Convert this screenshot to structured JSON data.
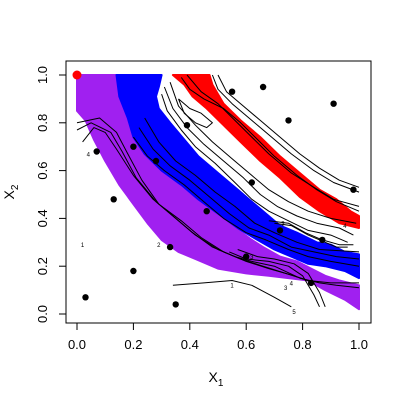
{
  "chart_data": {
    "type": "scatter",
    "xlabel": "X",
    "xlabel_sub": "1",
    "ylabel": "X",
    "ylabel_sub": "2",
    "xlim": [
      0,
      1
    ],
    "ylim": [
      0,
      1
    ],
    "x_ticks": [
      "0.0",
      "0.2",
      "0.4",
      "0.6",
      "0.8",
      "1.0"
    ],
    "y_ticks": [
      "0.0",
      "0.2",
      "0.4",
      "0.6",
      "0.8",
      "1.0"
    ],
    "grid": false,
    "legend": "none",
    "colors": {
      "purple": "#a020f0",
      "blue": "#0000ff",
      "red": "#ff0000",
      "points": "#000000",
      "start_point": "#ff0000",
      "contours": "#000000"
    },
    "bands": [
      {
        "color_key": "purple",
        "outer": [
          [
            0.0,
            1.0
          ],
          [
            0.14,
            1.0
          ],
          [
            0.15,
            0.92
          ],
          [
            0.18,
            0.85
          ],
          [
            0.2,
            0.75
          ],
          [
            0.25,
            0.66
          ],
          [
            0.32,
            0.58
          ],
          [
            0.4,
            0.5
          ],
          [
            0.48,
            0.43
          ],
          [
            0.55,
            0.37
          ],
          [
            0.62,
            0.31
          ],
          [
            0.66,
            0.28
          ],
          [
            0.72,
            0.24
          ],
          [
            0.78,
            0.22
          ],
          [
            0.83,
            0.19
          ],
          [
            0.88,
            0.16
          ],
          [
            0.93,
            0.14
          ],
          [
            1.0,
            0.12
          ]
        ],
        "inner": [
          [
            1.0,
            0.02
          ],
          [
            0.95,
            0.06
          ],
          [
            0.88,
            0.1
          ],
          [
            0.82,
            0.14
          ],
          [
            0.75,
            0.15
          ],
          [
            0.68,
            0.16
          ],
          [
            0.6,
            0.17
          ],
          [
            0.5,
            0.19
          ],
          [
            0.42,
            0.23
          ],
          [
            0.36,
            0.26
          ],
          [
            0.3,
            0.31
          ],
          [
            0.25,
            0.38
          ],
          [
            0.2,
            0.46
          ],
          [
            0.15,
            0.54
          ],
          [
            0.1,
            0.64
          ],
          [
            0.06,
            0.73
          ],
          [
            0.03,
            0.81
          ],
          [
            0.0,
            0.85
          ]
        ]
      },
      {
        "color_key": "blue",
        "outer": [
          [
            0.14,
            1.0
          ],
          [
            0.3,
            1.0
          ],
          [
            0.29,
            0.95
          ],
          [
            0.28,
            0.91
          ],
          [
            0.29,
            0.86
          ],
          [
            0.33,
            0.8
          ],
          [
            0.38,
            0.73
          ],
          [
            0.43,
            0.66
          ],
          [
            0.5,
            0.59
          ],
          [
            0.57,
            0.52
          ],
          [
            0.62,
            0.47
          ],
          [
            0.67,
            0.42
          ],
          [
            0.72,
            0.37
          ],
          [
            0.78,
            0.34
          ],
          [
            0.85,
            0.3
          ],
          [
            0.9,
            0.29
          ],
          [
            0.95,
            0.26
          ],
          [
            1.0,
            0.25
          ]
        ],
        "inner": [
          [
            1.0,
            0.15
          ],
          [
            0.95,
            0.18
          ],
          [
            0.88,
            0.2
          ],
          [
            0.82,
            0.21
          ],
          [
            0.76,
            0.24
          ],
          [
            0.7,
            0.27
          ],
          [
            0.64,
            0.31
          ],
          [
            0.57,
            0.36
          ],
          [
            0.5,
            0.42
          ],
          [
            0.43,
            0.48
          ],
          [
            0.37,
            0.54
          ],
          [
            0.3,
            0.6
          ],
          [
            0.24,
            0.67
          ],
          [
            0.2,
            0.74
          ],
          [
            0.18,
            0.82
          ],
          [
            0.15,
            0.91
          ]
        ]
      },
      {
        "color_key": "red",
        "outer": [
          [
            0.34,
            1.0
          ],
          [
            0.47,
            1.0
          ],
          [
            0.48,
            0.96
          ],
          [
            0.52,
            0.88
          ],
          [
            0.58,
            0.81
          ],
          [
            0.65,
            0.74
          ],
          [
            0.72,
            0.66
          ],
          [
            0.8,
            0.58
          ],
          [
            0.86,
            0.52
          ],
          [
            0.92,
            0.48
          ],
          [
            0.97,
            0.43
          ],
          [
            1.0,
            0.41
          ]
        ],
        "inner": [
          [
            1.0,
            0.36
          ],
          [
            0.93,
            0.38
          ],
          [
            0.86,
            0.43
          ],
          [
            0.79,
            0.49
          ],
          [
            0.72,
            0.57
          ],
          [
            0.65,
            0.64
          ],
          [
            0.58,
            0.72
          ],
          [
            0.52,
            0.79
          ],
          [
            0.46,
            0.86
          ],
          [
            0.41,
            0.91
          ],
          [
            0.38,
            0.96
          ]
        ]
      }
    ],
    "contours": [
      [
        [
          0.02,
          0.72
        ],
        [
          0.06,
          0.78
        ],
        [
          0.1,
          0.76
        ],
        [
          0.14,
          0.69
        ],
        [
          0.2,
          0.58
        ],
        [
          0.27,
          0.48
        ],
        [
          0.34,
          0.41
        ],
        [
          0.41,
          0.34
        ],
        [
          0.48,
          0.28
        ],
        [
          0.56,
          0.24
        ],
        [
          0.62,
          0.22
        ],
        [
          0.7,
          0.2
        ],
        [
          0.79,
          0.15
        ],
        [
          0.86,
          0.13
        ],
        [
          0.92,
          0.12
        ],
        [
          1.0,
          0.11
        ]
      ],
      [
        [
          0.0,
          0.77
        ],
        [
          0.05,
          0.8
        ],
        [
          0.12,
          0.76
        ],
        [
          0.16,
          0.68
        ],
        [
          0.21,
          0.57
        ],
        [
          0.28,
          0.47
        ],
        [
          0.35,
          0.4
        ],
        [
          0.42,
          0.33
        ],
        [
          0.5,
          0.27
        ],
        [
          0.58,
          0.23
        ],
        [
          0.66,
          0.2
        ],
        [
          0.74,
          0.17
        ],
        [
          0.82,
          0.14
        ],
        [
          0.9,
          0.13
        ],
        [
          1.0,
          0.13
        ]
      ],
      [
        [
          0.0,
          0.8
        ],
        [
          0.08,
          0.82
        ],
        [
          0.14,
          0.76
        ],
        [
          0.18,
          0.67
        ],
        [
          0.23,
          0.56
        ],
        [
          0.29,
          0.46
        ],
        [
          0.37,
          0.39
        ],
        [
          0.44,
          0.32
        ],
        [
          0.52,
          0.26
        ],
        [
          0.6,
          0.22
        ],
        [
          0.68,
          0.19
        ],
        [
          0.77,
          0.16
        ],
        [
          0.84,
          0.13
        ]
      ],
      [
        [
          0.2,
          0.74
        ],
        [
          0.25,
          0.66
        ],
        [
          0.31,
          0.6
        ],
        [
          0.38,
          0.54
        ],
        [
          0.45,
          0.47
        ],
        [
          0.52,
          0.4
        ],
        [
          0.6,
          0.34
        ],
        [
          0.67,
          0.31
        ],
        [
          0.75,
          0.27
        ],
        [
          0.82,
          0.24
        ],
        [
          0.9,
          0.22
        ],
        [
          1.0,
          0.2
        ]
      ],
      [
        [
          0.22,
          0.78
        ],
        [
          0.27,
          0.69
        ],
        [
          0.33,
          0.62
        ],
        [
          0.4,
          0.56
        ],
        [
          0.47,
          0.49
        ],
        [
          0.54,
          0.42
        ],
        [
          0.61,
          0.36
        ],
        [
          0.68,
          0.33
        ],
        [
          0.76,
          0.28
        ],
        [
          0.84,
          0.26
        ],
        [
          0.92,
          0.24
        ],
        [
          1.0,
          0.23
        ]
      ],
      [
        [
          0.24,
          0.82
        ],
        [
          0.29,
          0.72
        ],
        [
          0.35,
          0.64
        ],
        [
          0.42,
          0.58
        ],
        [
          0.49,
          0.51
        ],
        [
          0.56,
          0.45
        ],
        [
          0.63,
          0.38
        ],
        [
          0.7,
          0.34
        ],
        [
          0.78,
          0.3
        ],
        [
          0.86,
          0.27
        ],
        [
          1.0,
          0.26
        ]
      ],
      [
        [
          0.3,
          0.92
        ],
        [
          0.32,
          0.85
        ],
        [
          0.37,
          0.77
        ],
        [
          0.42,
          0.7
        ],
        [
          0.49,
          0.63
        ],
        [
          0.56,
          0.55
        ],
        [
          0.62,
          0.48
        ],
        [
          0.68,
          0.43
        ],
        [
          0.75,
          0.39
        ],
        [
          0.82,
          0.35
        ],
        [
          0.9,
          0.33
        ],
        [
          0.96,
          0.3
        ]
      ],
      [
        [
          0.31,
          0.95
        ],
        [
          0.34,
          0.86
        ],
        [
          0.39,
          0.78
        ],
        [
          0.45,
          0.71
        ],
        [
          0.52,
          0.64
        ],
        [
          0.59,
          0.57
        ],
        [
          0.65,
          0.5
        ],
        [
          0.71,
          0.45
        ],
        [
          0.78,
          0.41
        ],
        [
          0.85,
          0.38
        ],
        [
          0.93,
          0.36
        ],
        [
          0.98,
          0.33
        ]
      ],
      [
        [
          0.33,
          0.97
        ],
        [
          0.36,
          0.87
        ],
        [
          0.42,
          0.79
        ],
        [
          0.48,
          0.72
        ],
        [
          0.55,
          0.65
        ],
        [
          0.62,
          0.58
        ],
        [
          0.68,
          0.52
        ],
        [
          0.75,
          0.47
        ],
        [
          0.82,
          0.43
        ],
        [
          0.9,
          0.4
        ],
        [
          0.99,
          0.38
        ]
      ],
      [
        [
          0.36,
          0.9
        ],
        [
          0.4,
          0.86
        ],
        [
          0.44,
          0.84
        ],
        [
          0.48,
          0.8
        ],
        [
          0.46,
          0.78
        ],
        [
          0.42,
          0.8
        ],
        [
          0.38,
          0.84
        ],
        [
          0.36,
          0.9
        ]
      ],
      [
        [
          0.37,
          0.99
        ],
        [
          0.4,
          0.94
        ],
        [
          0.45,
          0.9
        ],
        [
          0.52,
          0.86
        ],
        [
          0.58,
          0.8
        ],
        [
          0.64,
          0.73
        ],
        [
          0.7,
          0.66
        ],
        [
          0.78,
          0.58
        ],
        [
          0.85,
          0.52
        ],
        [
          0.92,
          0.47
        ],
        [
          1.0,
          0.43
        ]
      ],
      [
        [
          0.39,
          1.0
        ],
        [
          0.44,
          0.93
        ],
        [
          0.5,
          0.88
        ],
        [
          0.56,
          0.81
        ],
        [
          0.62,
          0.74
        ],
        [
          0.68,
          0.67
        ],
        [
          0.76,
          0.59
        ],
        [
          0.84,
          0.53
        ],
        [
          0.91,
          0.48
        ],
        [
          1.0,
          0.45
        ]
      ],
      [
        [
          0.48,
          1.0
        ],
        [
          0.5,
          0.94
        ],
        [
          0.55,
          0.88
        ],
        [
          0.62,
          0.81
        ],
        [
          0.69,
          0.74
        ],
        [
          0.76,
          0.67
        ],
        [
          0.84,
          0.6
        ],
        [
          0.91,
          0.55
        ],
        [
          1.0,
          0.51
        ]
      ],
      [
        [
          0.5,
          1.0
        ],
        [
          0.53,
          0.93
        ],
        [
          0.58,
          0.88
        ],
        [
          0.65,
          0.81
        ],
        [
          0.72,
          0.74
        ],
        [
          0.79,
          0.67
        ],
        [
          0.86,
          0.61
        ],
        [
          0.93,
          0.56
        ],
        [
          1.0,
          0.53
        ]
      ],
      [
        [
          0.54,
          0.26
        ],
        [
          0.6,
          0.23
        ],
        [
          0.68,
          0.22
        ],
        [
          0.75,
          0.2
        ],
        [
          0.8,
          0.16
        ],
        [
          0.84,
          0.08
        ],
        [
          0.86,
          0.03
        ]
      ],
      [
        [
          0.57,
          0.27
        ],
        [
          0.64,
          0.24
        ],
        [
          0.7,
          0.23
        ],
        [
          0.77,
          0.21
        ],
        [
          0.82,
          0.17
        ],
        [
          0.86,
          0.09
        ],
        [
          0.88,
          0.03
        ]
      ],
      [
        [
          0.34,
          0.12
        ],
        [
          0.45,
          0.13
        ],
        [
          0.55,
          0.14
        ],
        [
          0.62,
          0.12
        ],
        [
          0.7,
          0.07
        ],
        [
          0.76,
          0.03
        ]
      ],
      [
        [
          0.7,
          0.38
        ],
        [
          0.76,
          0.37
        ],
        [
          0.82,
          0.33
        ],
        [
          0.88,
          0.3
        ],
        [
          0.92,
          0.28
        ],
        [
          0.96,
          0.28
        ]
      ],
      [
        [
          0.68,
          0.39
        ],
        [
          0.75,
          0.38
        ],
        [
          0.81,
          0.34
        ],
        [
          0.87,
          0.31
        ],
        [
          0.93,
          0.29
        ],
        [
          0.98,
          0.29
        ]
      ]
    ],
    "contour_labels": [
      {
        "x": 0.04,
        "y": 0.66,
        "text": "4"
      },
      {
        "x": 0.02,
        "y": 0.28,
        "text": "1"
      },
      {
        "x": 0.29,
        "y": 0.28,
        "text": "2"
      },
      {
        "x": 0.55,
        "y": 0.11,
        "text": "1"
      },
      {
        "x": 0.74,
        "y": 0.1,
        "text": "3"
      },
      {
        "x": 0.76,
        "y": 0.12,
        "text": "4"
      },
      {
        "x": 0.77,
        "y": 0.0,
        "text": "5"
      },
      {
        "x": 0.62,
        "y": 0.23,
        "text": "3"
      },
      {
        "x": 0.73,
        "y": 0.37,
        "text": "3"
      },
      {
        "x": 0.95,
        "y": 0.36,
        "text": "4"
      }
    ],
    "points": [
      [
        0.03,
        0.07
      ],
      [
        0.07,
        0.68
      ],
      [
        0.13,
        0.48
      ],
      [
        0.2,
        0.7
      ],
      [
        0.2,
        0.18
      ],
      [
        0.28,
        0.64
      ],
      [
        0.33,
        0.28
      ],
      [
        0.35,
        0.04
      ],
      [
        0.39,
        0.79
      ],
      [
        0.46,
        0.43
      ],
      [
        0.55,
        0.93
      ],
      [
        0.62,
        0.55
      ],
      [
        0.66,
        0.95
      ],
      [
        0.75,
        0.81
      ],
      [
        0.72,
        0.35
      ],
      [
        0.91,
        0.88
      ],
      [
        0.98,
        0.52
      ],
      [
        0.87,
        0.31
      ],
      [
        0.83,
        0.13
      ],
      [
        0.6,
        0.24
      ]
    ],
    "start_point": [
      0.0,
      1.0
    ]
  }
}
